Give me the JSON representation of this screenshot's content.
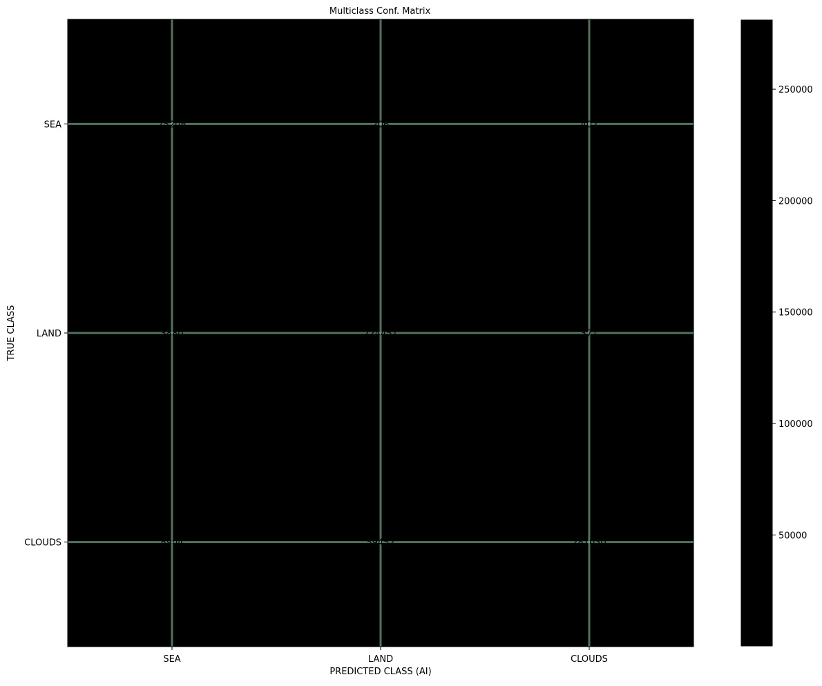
{
  "chart_data": {
    "type": "heatmap",
    "title": "Multiclass Conf. Matrix",
    "xlabel": "PREDICTED CLASS (AI)",
    "ylabel": "TRUE CLASS",
    "x_categories": [
      "SEA",
      "LAND",
      "CLOUDS"
    ],
    "y_categories": [
      "SEA",
      "LAND",
      "CLOUDS"
    ],
    "matrix": [
      [
        75208,
        206,
        402
      ],
      [
        3880,
        224451,
        371
      ],
      [
        8904,
        59452,
        281030
      ]
    ],
    "colormap": "Blues",
    "colorbar": {
      "range": [
        206,
        281030
      ],
      "ticks": [
        50000,
        100000,
        150000,
        200000,
        250000
      ],
      "tick_labels": [
        "50000",
        "100000",
        "150000",
        "200000",
        "250000"
      ]
    },
    "grid": true,
    "grid_color": "#8fd1a8"
  }
}
